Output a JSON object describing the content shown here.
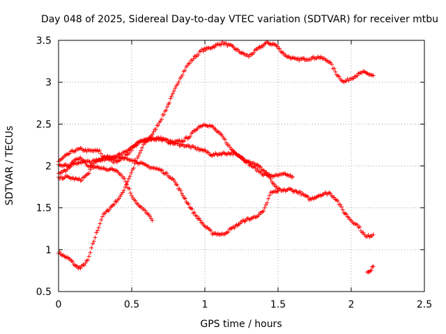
{
  "chart_data": {
    "type": "scatter",
    "title": "Day 048 of 2025, Sidereal Day-to-day VTEC variation (SDTVAR) for receiver mtbu",
    "xlabel": "GPS time / hours",
    "ylabel": "SDTVAR / TECUs",
    "xlim": [
      0,
      2.5
    ],
    "ylim": [
      0.5,
      3.5
    ],
    "x_ticks": [
      0,
      0.5,
      1,
      1.5,
      2,
      2.5
    ],
    "x_tick_labels": [
      "0",
      "0.5",
      "1",
      "1.5",
      "2",
      "2.5"
    ],
    "y_ticks": [
      0.5,
      1,
      1.5,
      2,
      2.5,
      3,
      3.5
    ],
    "y_tick_labels": [
      "0.5",
      "1",
      "1.5",
      "2",
      "2.5",
      "3",
      "3.5"
    ],
    "grid": true,
    "marker": "+",
    "color": "#ff0000",
    "series": [
      {
        "name": "trace-1",
        "anchors": [
          [
            0.0,
            0.97
          ],
          [
            0.04,
            0.92
          ],
          [
            0.08,
            0.88
          ],
          [
            0.12,
            0.8
          ],
          [
            0.15,
            0.78
          ],
          [
            0.2,
            0.87
          ],
          [
            0.25,
            1.15
          ],
          [
            0.3,
            1.4
          ],
          [
            0.38,
            1.55
          ],
          [
            0.43,
            1.65
          ],
          [
            0.48,
            1.85
          ],
          [
            0.53,
            2.05
          ],
          [
            0.58,
            2.25
          ],
          [
            0.65,
            2.4
          ],
          [
            0.72,
            2.62
          ],
          [
            0.78,
            2.85
          ],
          [
            0.83,
            3.05
          ],
          [
            0.88,
            3.2
          ],
          [
            0.93,
            3.3
          ],
          [
            0.98,
            3.38
          ],
          [
            1.05,
            3.42
          ],
          [
            1.12,
            3.47
          ],
          [
            1.18,
            3.43
          ],
          [
            1.25,
            3.35
          ],
          [
            1.3,
            3.31
          ],
          [
            1.35,
            3.38
          ],
          [
            1.42,
            3.47
          ],
          [
            1.48,
            3.45
          ],
          [
            1.55,
            3.32
          ],
          [
            1.62,
            3.27
          ],
          [
            1.7,
            3.28
          ],
          [
            1.78,
            3.3
          ],
          [
            1.85,
            3.25
          ],
          [
            1.9,
            3.1
          ],
          [
            1.95,
            3.0
          ],
          [
            2.0,
            3.05
          ],
          [
            2.08,
            3.12
          ],
          [
            2.15,
            3.08
          ]
        ]
      },
      {
        "name": "trace-2",
        "anchors": [
          [
            0.0,
            2.05
          ],
          [
            0.05,
            2.12
          ],
          [
            0.1,
            2.18
          ],
          [
            0.15,
            2.2
          ],
          [
            0.2,
            2.18
          ],
          [
            0.28,
            2.18
          ],
          [
            0.3,
            2.12
          ],
          [
            0.38,
            2.05
          ],
          [
            0.45,
            2.1
          ],
          [
            0.5,
            2.2
          ],
          [
            0.55,
            2.28
          ],
          [
            0.62,
            2.33
          ],
          [
            0.7,
            2.33
          ],
          [
            0.78,
            2.28
          ],
          [
            0.85,
            2.3
          ],
          [
            0.9,
            2.36
          ],
          [
            0.95,
            2.46
          ],
          [
            1.0,
            2.5
          ],
          [
            1.05,
            2.47
          ],
          [
            1.12,
            2.35
          ],
          [
            1.18,
            2.2
          ],
          [
            1.25,
            2.1
          ],
          [
            1.32,
            2.0
          ],
          [
            1.4,
            1.9
          ],
          [
            1.48,
            1.88
          ],
          [
            1.55,
            1.9
          ],
          [
            1.6,
            1.87
          ]
        ]
      },
      {
        "name": "trace-3",
        "anchors": [
          [
            0.0,
            1.9
          ],
          [
            0.05,
            1.95
          ],
          [
            0.1,
            2.05
          ],
          [
            0.15,
            2.1
          ],
          [
            0.2,
            2.0
          ],
          [
            0.3,
            1.97
          ],
          [
            0.4,
            1.95
          ],
          [
            0.45,
            1.85
          ],
          [
            0.5,
            1.65
          ],
          [
            0.55,
            1.52
          ],
          [
            0.6,
            1.45
          ],
          [
            0.64,
            1.35
          ]
        ]
      },
      {
        "name": "trace-4",
        "anchors": [
          [
            0.0,
            1.85
          ],
          [
            0.05,
            1.87
          ],
          [
            0.1,
            1.85
          ],
          [
            0.15,
            1.83
          ],
          [
            0.2,
            1.9
          ],
          [
            0.25,
            2.05
          ],
          [
            0.32,
            2.1
          ],
          [
            0.4,
            2.12
          ],
          [
            0.48,
            2.2
          ],
          [
            0.55,
            2.28
          ],
          [
            0.62,
            2.32
          ],
          [
            0.7,
            2.32
          ],
          [
            0.78,
            2.27
          ],
          [
            0.85,
            2.25
          ],
          [
            0.92,
            2.22
          ],
          [
            1.0,
            2.18
          ],
          [
            1.05,
            2.13
          ],
          [
            1.12,
            2.15
          ],
          [
            1.2,
            2.15
          ],
          [
            1.27,
            2.08
          ],
          [
            1.35,
            2.02
          ],
          [
            1.42,
            1.92
          ],
          [
            1.48,
            1.75
          ],
          [
            1.52,
            1.7
          ],
          [
            1.58,
            1.72
          ],
          [
            1.65,
            1.68
          ],
          [
            1.72,
            1.6
          ],
          [
            1.78,
            1.65
          ],
          [
            1.85,
            1.68
          ],
          [
            1.9,
            1.6
          ],
          [
            1.95,
            1.45
          ],
          [
            2.0,
            1.35
          ],
          [
            2.05,
            1.28
          ],
          [
            2.1,
            1.15
          ],
          [
            2.15,
            1.18
          ]
        ]
      },
      {
        "name": "trace-5",
        "anchors": [
          [
            0.0,
            2.02
          ],
          [
            0.08,
            2.0
          ],
          [
            0.15,
            2.05
          ],
          [
            0.22,
            2.05
          ],
          [
            0.3,
            2.08
          ],
          [
            0.4,
            2.1
          ],
          [
            0.5,
            2.08
          ],
          [
            0.6,
            2.0
          ],
          [
            0.7,
            1.95
          ],
          [
            0.78,
            1.85
          ],
          [
            0.85,
            1.65
          ],
          [
            0.92,
            1.45
          ],
          [
            1.0,
            1.28
          ],
          [
            1.05,
            1.2
          ],
          [
            1.12,
            1.18
          ],
          [
            1.2,
            1.27
          ],
          [
            1.27,
            1.35
          ],
          [
            1.33,
            1.38
          ],
          [
            1.4,
            1.45
          ],
          [
            1.45,
            1.68
          ],
          [
            1.5,
            1.7
          ]
        ]
      },
      {
        "name": "trace-6",
        "anchors": [
          [
            2.11,
            0.72
          ],
          [
            2.13,
            0.75
          ],
          [
            2.15,
            0.8
          ]
        ]
      }
    ]
  }
}
